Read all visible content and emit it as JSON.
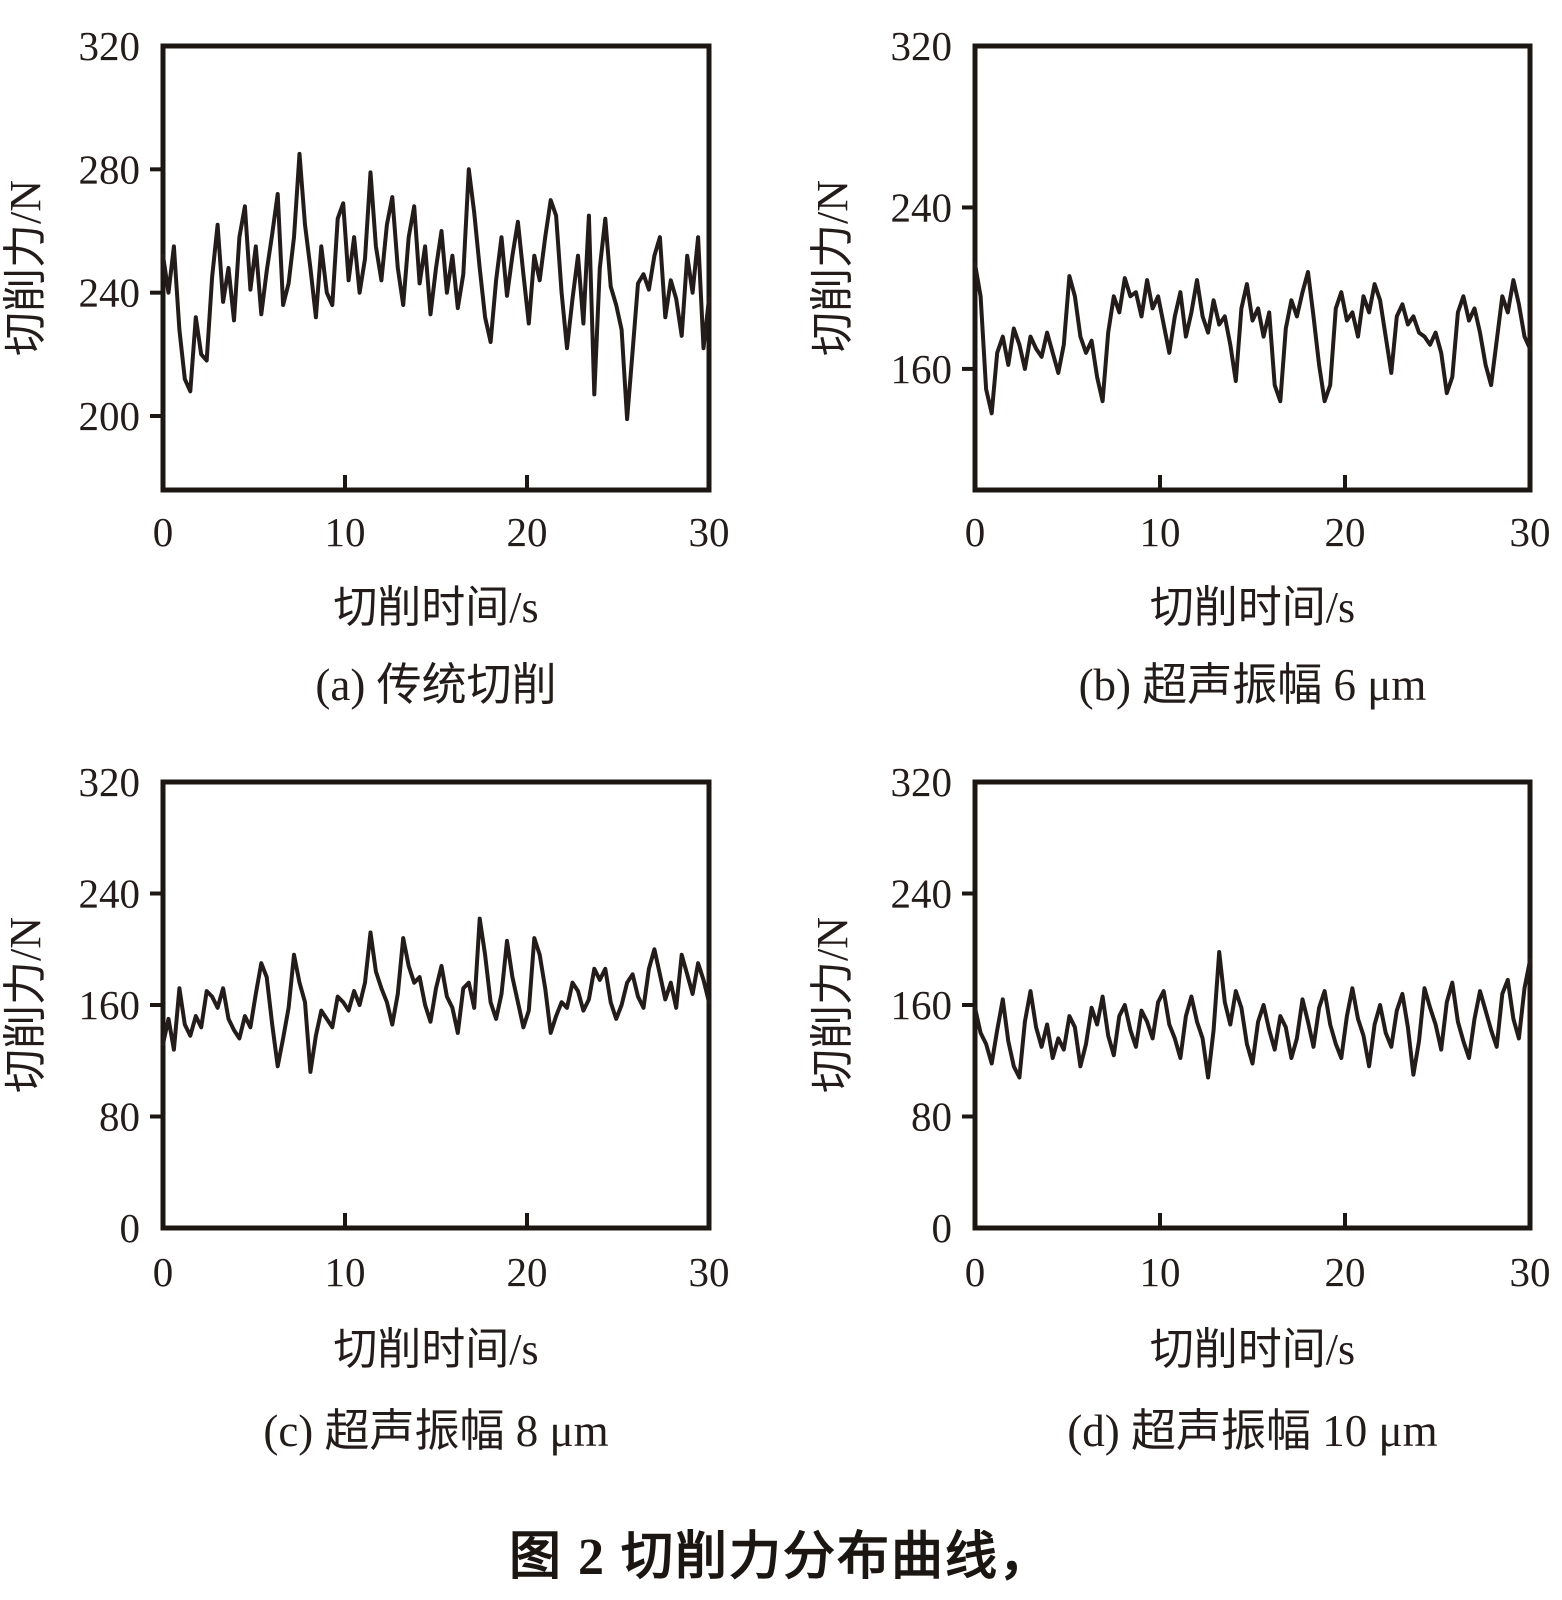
{
  "figure": {
    "caption": "图 2 切削力分布曲线，"
  },
  "colors": {
    "ink": "#231c1a",
    "axis": "#1d1713",
    "background": "#ffffff"
  },
  "chart_data": {
    "type": "line",
    "xlabel": "切削时间/s",
    "ylabel": "切削力/N",
    "xlim": [
      0,
      30
    ],
    "xticks": [
      0,
      10,
      20,
      30
    ],
    "grid": false,
    "legend": "none",
    "x": [
      0,
      0.3,
      0.6,
      0.9,
      1.2,
      1.5,
      1.8,
      2.1,
      2.4,
      2.7,
      3,
      3.3,
      3.6,
      3.9,
      4.2,
      4.5,
      4.8,
      5.1,
      5.4,
      5.7,
      6,
      6.3,
      6.6,
      6.9,
      7.2,
      7.5,
      7.8,
      8.1,
      8.4,
      8.7,
      9,
      9.3,
      9.6,
      9.9,
      10.2,
      10.5,
      10.8,
      11.1,
      11.4,
      11.7,
      12,
      12.3,
      12.6,
      12.9,
      13.2,
      13.5,
      13.8,
      14.1,
      14.4,
      14.7,
      15,
      15.3,
      15.6,
      15.9,
      16.2,
      16.5,
      16.8,
      17.1,
      17.4,
      17.7,
      18,
      18.3,
      18.6,
      18.9,
      19.2,
      19.5,
      19.8,
      20.1,
      20.4,
      20.7,
      21,
      21.3,
      21.6,
      21.9,
      22.2,
      22.5,
      22.8,
      23.1,
      23.4,
      23.7,
      24,
      24.3,
      24.6,
      24.9,
      25.2,
      25.5,
      25.8,
      26.1,
      26.4,
      26.7,
      27,
      27.3,
      27.6,
      27.9,
      28.2,
      28.5,
      28.8,
      29.1,
      29.4,
      29.7,
      30
    ],
    "charts": [
      {
        "id": "a",
        "caption": "(a) 传统切削",
        "ylim": [
          176,
          320
        ],
        "yticks": [
          320,
          280,
          240,
          200
        ],
        "y": [
          252,
          240,
          255,
          228,
          212,
          208,
          232,
          220,
          218,
          245,
          262,
          237,
          248,
          231,
          258,
          268,
          241,
          255,
          233,
          247,
          259,
          272,
          236,
          243,
          258,
          285,
          262,
          248,
          232,
          255,
          240,
          236,
          264,
          269,
          244,
          258,
          240,
          251,
          279,
          255,
          244,
          262,
          271,
          248,
          236,
          258,
          268,
          243,
          255,
          233,
          248,
          260,
          240,
          252,
          235,
          246,
          280,
          266,
          248,
          232,
          224,
          244,
          258,
          239,
          252,
          263,
          246,
          230,
          252,
          244,
          258,
          270,
          265,
          240,
          222,
          238,
          252,
          230,
          265,
          207,
          248,
          264,
          242,
          236,
          228,
          199,
          221,
          243,
          246,
          241,
          252,
          258,
          232,
          244,
          238,
          226,
          252,
          240,
          258,
          222,
          238
        ]
      },
      {
        "id": "b",
        "caption": "(b) 超声振幅 6 μm",
        "ylim": [
          100,
          320
        ],
        "yticks": [
          320,
          240,
          160
        ],
        "y": [
          212,
          196,
          150,
          138,
          168,
          176,
          162,
          180,
          172,
          160,
          176,
          170,
          166,
          178,
          168,
          158,
          172,
          206,
          196,
          176,
          168,
          174,
          156,
          144,
          178,
          196,
          188,
          205,
          196,
          198,
          186,
          204,
          190,
          196,
          182,
          168,
          186,
          198,
          176,
          188,
          204,
          186,
          178,
          194,
          182,
          186,
          172,
          154,
          190,
          202,
          184,
          190,
          176,
          188,
          152,
          144,
          180,
          194,
          186,
          198,
          208,
          186,
          162,
          144,
          152,
          190,
          198,
          184,
          188,
          176,
          196,
          188,
          202,
          194,
          176,
          158,
          186,
          192,
          182,
          186,
          178,
          176,
          172,
          178,
          168,
          148,
          156,
          188,
          196,
          184,
          190,
          178,
          162,
          152,
          174,
          196,
          188,
          204,
          192,
          176,
          170
        ]
      },
      {
        "id": "c",
        "caption": "(c) 超声振幅 8 μm",
        "ylim": [
          0,
          320
        ],
        "yticks": [
          320,
          240,
          160,
          80,
          0
        ],
        "y": [
          132,
          150,
          128,
          172,
          146,
          138,
          152,
          144,
          170,
          166,
          158,
          172,
          150,
          142,
          136,
          152,
          144,
          168,
          190,
          180,
          146,
          116,
          136,
          158,
          196,
          176,
          162,
          112,
          138,
          156,
          150,
          144,
          166,
          162,
          156,
          170,
          160,
          176,
          212,
          184,
          172,
          162,
          146,
          168,
          208,
          188,
          176,
          180,
          160,
          148,
          172,
          188,
          166,
          158,
          140,
          172,
          176,
          158,
          222,
          196,
          162,
          150,
          168,
          206,
          180,
          162,
          144,
          156,
          208,
          196,
          172,
          140,
          152,
          162,
          158,
          176,
          170,
          156,
          164,
          186,
          178,
          186,
          162,
          150,
          160,
          176,
          182,
          166,
          158,
          186,
          200,
          182,
          164,
          176,
          158,
          196,
          182,
          168,
          190,
          178,
          162
        ]
      },
      {
        "id": "d",
        "caption": "(d) 超声振幅 10 μm",
        "ylim": [
          0,
          320
        ],
        "yticks": [
          320,
          240,
          160,
          80,
          0
        ],
        "y": [
          158,
          140,
          132,
          118,
          142,
          164,
          134,
          116,
          108,
          148,
          170,
          144,
          130,
          146,
          122,
          136,
          128,
          152,
          144,
          116,
          132,
          158,
          146,
          166,
          138,
          124,
          152,
          160,
          142,
          130,
          156,
          148,
          136,
          162,
          170,
          146,
          136,
          122,
          152,
          166,
          148,
          136,
          108,
          142,
          198,
          162,
          146,
          170,
          158,
          132,
          118,
          148,
          160,
          142,
          128,
          152,
          144,
          122,
          136,
          164,
          148,
          130,
          158,
          170,
          146,
          132,
          122,
          152,
          172,
          150,
          138,
          116,
          146,
          160,
          140,
          130,
          156,
          168,
          144,
          110,
          134,
          172,
          158,
          146,
          128,
          162,
          176,
          148,
          134,
          122,
          150,
          170,
          156,
          142,
          130,
          168,
          178,
          150,
          136,
          172,
          192
        ]
      }
    ]
  }
}
